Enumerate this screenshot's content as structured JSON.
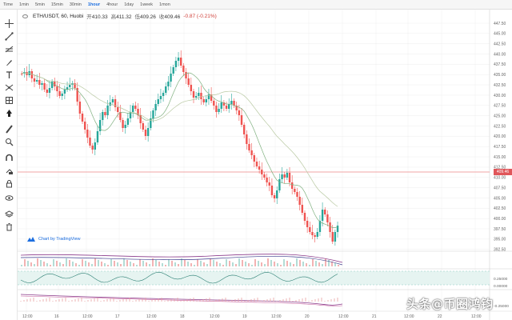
{
  "timeframes": [
    "Time",
    "1min",
    "5min",
    "15min",
    "30min",
    "1hour",
    "4hour",
    "1day",
    "1week",
    "1mon"
  ],
  "active_timeframe": "1hour",
  "legend": {
    "symbol": "ETH/USDT, 60, Huobi",
    "open_label": "开",
    "open": "410.33",
    "high_label": "高",
    "high": "411.32",
    "low_label": "低",
    "low": "409.26",
    "close_label": "收",
    "close": "409.46",
    "change": "-0.87 (-0.21%)"
  },
  "price_axis": [
    "447.50",
    "445.00",
    "442.50",
    "440.00",
    "437.50",
    "435.00",
    "432.50",
    "430.00",
    "427.50",
    "425.00",
    "422.50",
    "420.00",
    "417.50",
    "415.00",
    "412.50",
    "410.00",
    "407.50",
    "405.00",
    "402.50",
    "400.00",
    "397.50",
    "395.00",
    "392.50"
  ],
  "current_price_tag": "409.46",
  "macd_axis": [
    "0.25000",
    "0.00000",
    "-0.25000"
  ],
  "time_axis": [
    "12:00",
    "16",
    "12:00",
    "17",
    "12:00",
    "18",
    "12:00",
    "19",
    "12:00",
    "20",
    "12:00",
    "21",
    "12:00",
    "22",
    "12:00"
  ],
  "credit": "Chart by TradingView",
  "watermark": "头条@币圈鸿钧",
  "colors": {
    "up": "#26a69a",
    "down": "#ef5350",
    "ma": "#6aa36f",
    "accent": "#1c6ee0"
  },
  "tools": [
    "crosshair-icon",
    "trend-line-icon",
    "fib-icon",
    "brush-icon",
    "text-icon",
    "pattern-icon",
    "measure-icon",
    "arrow-icon",
    "ruler-icon",
    "zoom-icon",
    "magnet-icon",
    "lock-drawings-icon",
    "lock-icon",
    "eye-icon",
    "layers-icon",
    "trash-icon"
  ]
}
